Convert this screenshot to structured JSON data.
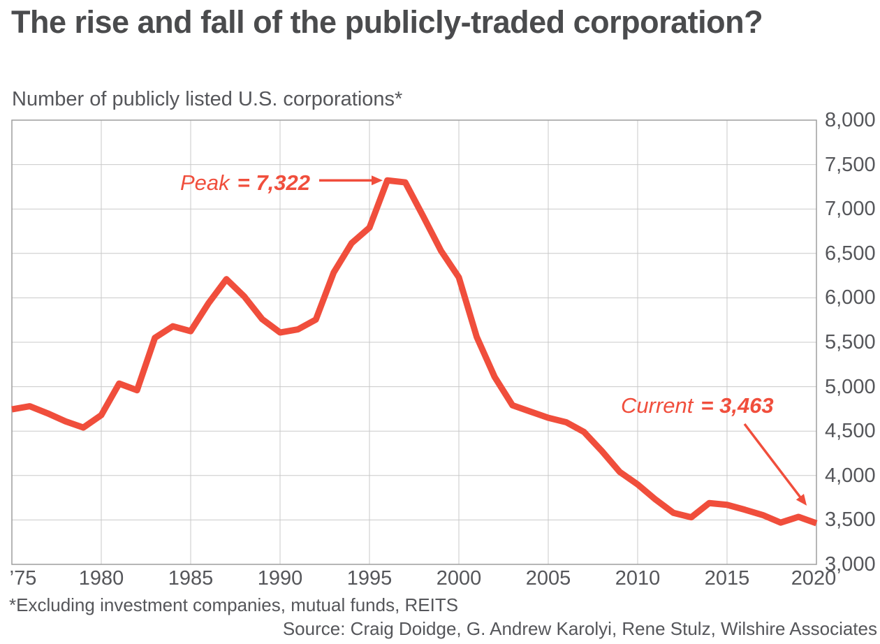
{
  "chart_data": {
    "type": "line",
    "title": "The rise and fall of the publicly-traded corporation?",
    "subtitle": "Number of publicly listed U.S. corporations*",
    "x": [
      1975,
      1976,
      1977,
      1978,
      1979,
      1980,
      1981,
      1982,
      1983,
      1984,
      1985,
      1986,
      1987,
      1988,
      1989,
      1990,
      1991,
      1992,
      1993,
      1994,
      1995,
      1996,
      1997,
      1998,
      1999,
      2000,
      2001,
      2002,
      2003,
      2004,
      2005,
      2006,
      2007,
      2008,
      2009,
      2010,
      2011,
      2012,
      2013,
      2014,
      2015,
      2016,
      2017,
      2018,
      2019,
      2020
    ],
    "series": [
      {
        "name": "Number of publicly listed U.S. corporations",
        "color": "#f04e3c",
        "values": [
          4745,
          4780,
          4700,
          4610,
          4540,
          4680,
          5035,
          4960,
          5550,
          5680,
          5625,
          5940,
          6210,
          6015,
          5760,
          5610,
          5645,
          5755,
          6285,
          6615,
          6790,
          7322,
          7300,
          6920,
          6530,
          6230,
          5560,
          5110,
          4790,
          4720,
          4650,
          4600,
          4490,
          4275,
          4040,
          3900,
          3730,
          3580,
          3530,
          3690,
          3670,
          3615,
          3555,
          3470,
          3535,
          3463
        ]
      }
    ],
    "xlim": [
      1975,
      2020
    ],
    "ylim": [
      3000,
      8000
    ],
    "grid": true,
    "legend": "none",
    "y_axis_side": "right",
    "y_ticks": [
      {
        "value": 8000,
        "label": "8,000"
      },
      {
        "value": 7500,
        "label": "7,500"
      },
      {
        "value": 7000,
        "label": "7,000"
      },
      {
        "value": 6500,
        "label": "6,500"
      },
      {
        "value": 6000,
        "label": "6,000"
      },
      {
        "value": 5500,
        "label": "5,500"
      },
      {
        "value": 5000,
        "label": "5,000"
      },
      {
        "value": 4500,
        "label": "4,500"
      },
      {
        "value": 4000,
        "label": "4,000"
      },
      {
        "value": 3500,
        "label": "3,500"
      },
      {
        "value": 3000,
        "label": "3,000"
      }
    ],
    "x_ticks": [
      {
        "year": 1975,
        "label": "’75"
      },
      {
        "year": 1980,
        "label": "1980"
      },
      {
        "year": 1985,
        "label": "1985"
      },
      {
        "year": 1990,
        "label": "1990"
      },
      {
        "year": 1995,
        "label": "1995"
      },
      {
        "year": 2000,
        "label": "2000"
      },
      {
        "year": 2005,
        "label": "2005"
      },
      {
        "year": 2010,
        "label": "2010"
      },
      {
        "year": 2015,
        "label": "2015"
      },
      {
        "year": 2020,
        "label": "2020"
      }
    ],
    "annotations": [
      {
        "id": "peak",
        "prefix": "Peak",
        "value_text": "= 7,322",
        "year": 1996,
        "value": 7322
      },
      {
        "id": "current",
        "prefix": "Current",
        "value_text": "= 3,463",
        "year": 2020,
        "value": 3463
      }
    ]
  },
  "footnote": "*Excluding investment companies, mutual funds, REITS",
  "source": "Source: Craig Doidge, G. Andrew Karolyi, Rene Stulz, Wilshire Associates",
  "colors": {
    "line": "#f04e3c",
    "title_text": "#4a4b4d",
    "body_text": "#55565a",
    "gridline": "#c9c9c9",
    "plot_border": "#9d9d9d",
    "background": "#ffffff"
  }
}
